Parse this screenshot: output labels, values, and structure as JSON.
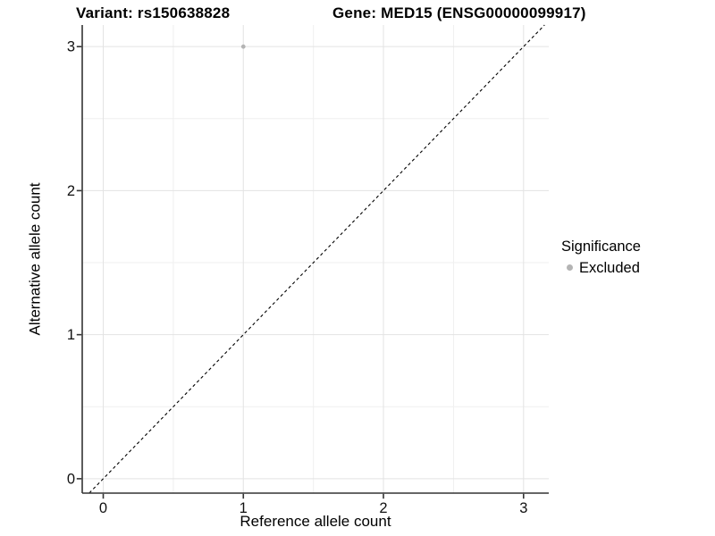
{
  "chart_data": {
    "type": "scatter",
    "title_left": "Variant: rs150638828",
    "title_right": "Gene: MED15 (ENSG00000099917)",
    "xlabel": "Reference allele count",
    "ylabel": "Alternative allele count",
    "x_ticks": [
      0,
      1,
      2,
      3
    ],
    "y_ticks": [
      0,
      1,
      2,
      3
    ],
    "xlim": [
      -0.15,
      3.18
    ],
    "ylim": [
      -0.1,
      3.15
    ],
    "grid": true,
    "minor_grid": true,
    "reference_line": {
      "type": "identity",
      "style": "dashed"
    },
    "series": [
      {
        "name": "Excluded",
        "color": "#b4b4b4",
        "points": [
          {
            "x": 1,
            "y": 3
          }
        ]
      }
    ],
    "legend": {
      "title": "Significance",
      "position": "right",
      "items": [
        {
          "label": "Excluded",
          "color": "#b4b4b4"
        }
      ]
    }
  },
  "colors": {
    "background": "#ffffff",
    "grid_major": "#e3e3e3",
    "grid_minor": "#efefef",
    "axis": "#333333",
    "tick_text": "#111111",
    "title_text": "#000000",
    "reference_line": "#000000"
  }
}
